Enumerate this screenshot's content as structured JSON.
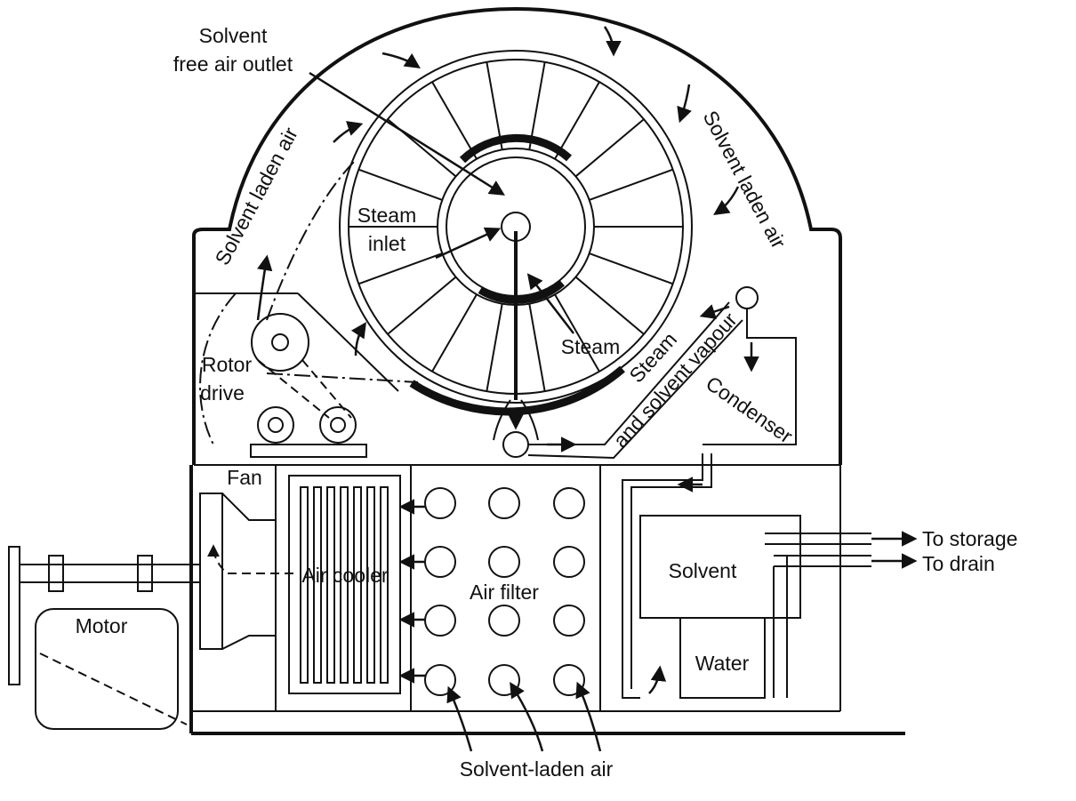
{
  "labels": {
    "solvent_free_air_outlet_line1": "Solvent",
    "solvent_free_air_outlet_line2": "free air outlet",
    "solvent_laden_air_left": "Solvent laden air",
    "solvent_laden_air_right": "Solvent laden air",
    "steam_inlet_line1": "Steam",
    "steam_inlet_line2": "inlet",
    "steam": "Steam",
    "steam_and_solvent_vapour_line1": "Steam",
    "steam_and_solvent_vapour_line2": "and solvent vapour",
    "condenser": "Condenser",
    "rotor_drive_line1": "Rotor",
    "rotor_drive_line2": "drive",
    "fan": "Fan",
    "air_cooler": "Air cooler",
    "air_filter": "Air filter",
    "motor": "Motor",
    "solvent": "Solvent",
    "water": "Water",
    "to_storage": "To storage",
    "to_drain": "To drain",
    "solvent_laden_air_bottom": "Solvent-laden air"
  },
  "icons": {
    "flow_arrow": "arrow-icon"
  }
}
